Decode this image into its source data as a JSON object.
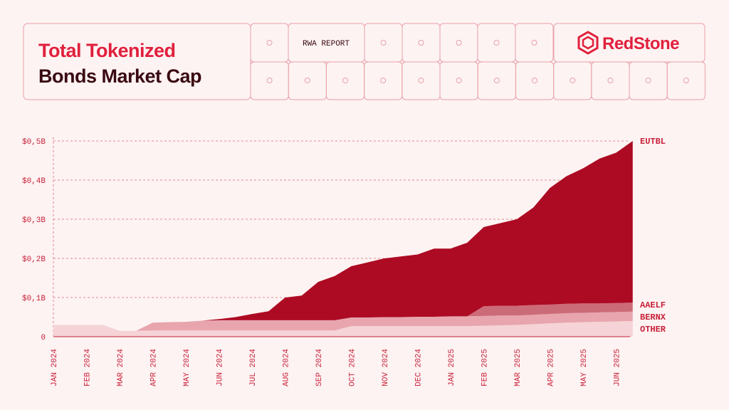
{
  "header": {
    "title_line1": "Total Tokenized",
    "title_line2": "Bonds Market Cap",
    "tag": "RWA REPORT",
    "brand": "RedStone"
  },
  "chart_data": {
    "type": "stacked_area",
    "categories": [
      "JAN 2024",
      null,
      "FEB 2024",
      null,
      "MAR 2024",
      null,
      "APR 2024",
      null,
      "MAY 2024",
      null,
      "JUN 2024",
      null,
      "JUL 2024",
      null,
      "AUG 2024",
      null,
      "SEP 2024",
      null,
      "OCT 2024",
      null,
      "NOV 2024",
      null,
      "DEC 2024",
      null,
      "JAN 2025",
      null,
      "FEB 2025",
      null,
      "MAR 2025",
      null,
      "APR 2025",
      null,
      "MAY 2025",
      null,
      "JUN 2025",
      null
    ],
    "series": [
      {
        "name": "OTHER",
        "color": "#f5d3d6",
        "values": [
          0.03,
          0.03,
          0.03,
          0.03,
          0.015,
          0.015,
          0.016,
          0.016,
          0.016,
          0.016,
          0.016,
          0.016,
          0.016,
          0.016,
          0.016,
          0.016,
          0.016,
          0.016,
          0.027,
          0.027,
          0.027,
          0.027,
          0.027,
          0.027,
          0.027,
          0.027,
          0.028,
          0.029,
          0.03,
          0.032,
          0.034,
          0.036,
          0.037,
          0.038,
          0.039,
          0.04
        ]
      },
      {
        "name": "BERNX",
        "color": "#e8a5ae",
        "values": [
          0,
          0,
          0,
          0,
          0,
          0,
          0.02,
          0.021,
          0.022,
          0.025,
          0.026,
          0.026,
          0.026,
          0.026,
          0.026,
          0.026,
          0.026,
          0.026,
          0.022,
          0.022,
          0.023,
          0.023,
          0.024,
          0.024,
          0.025,
          0.025,
          0.025,
          0.025,
          0.024,
          0.024,
          0.024,
          0.024,
          0.024,
          0.024,
          0.024,
          0.024
        ]
      },
      {
        "name": "AAELF",
        "color": "#cc6b78",
        "values": [
          0,
          0,
          0,
          0,
          0,
          0,
          0,
          0,
          0,
          0,
          0,
          0,
          0,
          0,
          0,
          0,
          0,
          0,
          0,
          0,
          0,
          0,
          0,
          0,
          0,
          0,
          0.025,
          0.025,
          0.025,
          0.025,
          0.024,
          0.024,
          0.024,
          0.023,
          0.023,
          0.023
        ]
      },
      {
        "name": "EUTBL",
        "color": "#ad0a23",
        "values": [
          0,
          0,
          0,
          0,
          0,
          0,
          0,
          0,
          0,
          0,
          0.003,
          0.008,
          0.016,
          0.023,
          0.058,
          0.063,
          0.098,
          0.113,
          0.131,
          0.141,
          0.15,
          0.155,
          0.159,
          0.174,
          0.173,
          0.188,
          0.202,
          0.211,
          0.221,
          0.249,
          0.298,
          0.326,
          0.345,
          0.37,
          0.384,
          0.413
        ]
      }
    ],
    "ylim": [
      0,
      0.5
    ],
    "yticks": [
      0,
      {
        "value": 0.1,
        "label": "$0,1B"
      },
      {
        "value": 0.2,
        "label": "$0,2B"
      },
      {
        "value": 0.3,
        "label": "$0,3B"
      },
      {
        "value": 0.4,
        "label": "$0,4B"
      },
      {
        "value": 0.5,
        "label": "$0,5B"
      }
    ],
    "grid": true
  }
}
